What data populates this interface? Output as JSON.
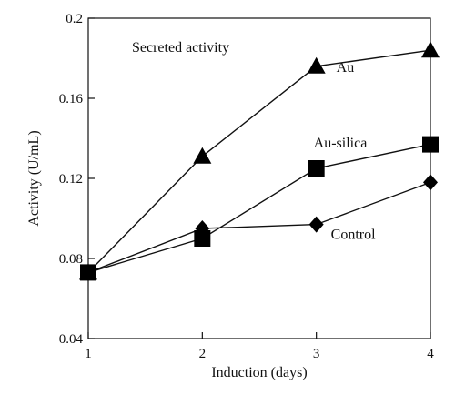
{
  "chart_data": {
    "type": "line",
    "xlabel": "Induction (days)",
    "ylabel": "Activity (U/mL)",
    "annotation": "Secreted activity",
    "xlim": [
      1,
      4
    ],
    "ylim": [
      0.04,
      0.2
    ],
    "xticks": [
      1,
      2,
      3,
      4
    ],
    "yticks": [
      0.04,
      0.08,
      0.12,
      0.16,
      0.2
    ],
    "ytick_labels": [
      "0.04",
      "0.08",
      "0.12",
      "0.16",
      "0.2"
    ],
    "grid": false,
    "series": [
      {
        "name": "Au",
        "marker": "triangle",
        "x": [
          1,
          2,
          3,
          4
        ],
        "y": [
          0.073,
          0.131,
          0.176,
          0.184
        ]
      },
      {
        "name": "Au-silica",
        "marker": "square",
        "x": [
          1,
          2,
          3,
          4
        ],
        "y": [
          0.073,
          0.09,
          0.125,
          0.137
        ]
      },
      {
        "name": "Control",
        "marker": "diamond",
        "x": [
          1,
          2,
          3,
          4
        ],
        "y": [
          0.073,
          0.095,
          0.097,
          0.118
        ]
      }
    ]
  }
}
